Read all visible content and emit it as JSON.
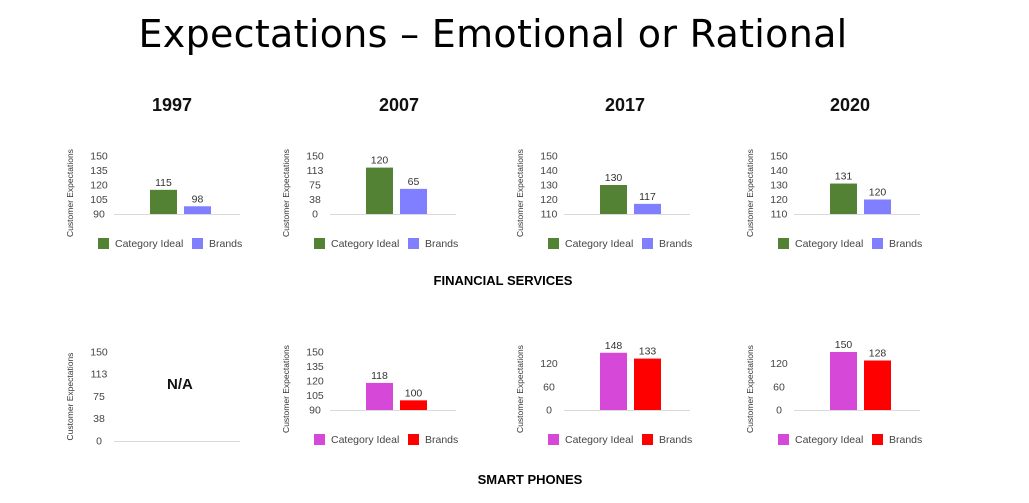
{
  "title": "Expectations – Emotional or Rational",
  "years": [
    "1997",
    "2007",
    "2017",
    "2020"
  ],
  "sections": [
    {
      "label": "FINANCIAL SERVICES"
    },
    {
      "label": "SMART PHONES"
    }
  ],
  "colors": {
    "financial_ideal": "#548235",
    "financial_brands": "#7f7fff",
    "phone_ideal": "#d648d7",
    "phone_brands": "#ff0000"
  },
  "chart_data": [
    {
      "type": "bar",
      "id": "fs-1997",
      "ylabel": "Customer Expectations",
      "yticks": [
        90,
        105,
        120,
        135,
        150
      ],
      "ylim": [
        90,
        150
      ],
      "categories": [
        "Category Ideal",
        "Brands"
      ],
      "values": [
        115,
        98
      ],
      "legend": [
        "Category Ideal",
        "Brands"
      ],
      "na": ""
    },
    {
      "type": "bar",
      "id": "fs-2007",
      "ylabel": "Customer Expectations",
      "yticks": [
        0,
        38,
        75,
        113,
        150
      ],
      "ylim": [
        0,
        150
      ],
      "categories": [
        "Category Ideal",
        "Brands"
      ],
      "values": [
        120,
        65
      ],
      "legend": [
        "Category Ideal",
        "Brands"
      ],
      "na": ""
    },
    {
      "type": "bar",
      "id": "fs-2017",
      "ylabel": "Customer Expectations",
      "yticks": [
        110,
        120,
        130,
        140,
        150
      ],
      "ylim": [
        110,
        150
      ],
      "categories": [
        "Category Ideal",
        "Brands"
      ],
      "values": [
        130,
        117
      ],
      "legend": [
        "Category Ideal",
        "Brands"
      ],
      "na": ""
    },
    {
      "type": "bar",
      "id": "fs-2020",
      "ylabel": "Customer Expectations",
      "yticks": [
        110,
        120,
        130,
        140,
        150
      ],
      "ylim": [
        110,
        150
      ],
      "categories": [
        "Category Ideal",
        "Brands"
      ],
      "values": [
        131,
        120
      ],
      "legend": [
        "Category Ideal",
        "Brands"
      ],
      "na": ""
    },
    {
      "type": "bar",
      "id": "sp-1997",
      "ylabel": "Customer Expectations",
      "yticks": [
        0,
        38,
        75,
        113,
        150
      ],
      "ylim": [
        0,
        150
      ],
      "categories": [],
      "values": [],
      "legend": [],
      "na": "N/A"
    },
    {
      "type": "bar",
      "id": "sp-2007",
      "ylabel": "Customer Expectations",
      "yticks": [
        90,
        105,
        120,
        135,
        150
      ],
      "ylim": [
        90,
        150
      ],
      "categories": [
        "Category Ideal",
        "Brands"
      ],
      "values": [
        118,
        100
      ],
      "legend": [
        "Category Ideal",
        "Brands"
      ],
      "na": ""
    },
    {
      "type": "bar",
      "id": "sp-2017",
      "ylabel": "Customer Expectations",
      "yticks": [
        0,
        60,
        120
      ],
      "ylim": [
        0,
        150
      ],
      "categories": [
        "Category Ideal",
        "Brands"
      ],
      "values": [
        148,
        133
      ],
      "legend": [
        "Category Ideal",
        "Brands"
      ],
      "na": ""
    },
    {
      "type": "bar",
      "id": "sp-2020",
      "ylabel": "Customer Expectations",
      "yticks": [
        0,
        60,
        120
      ],
      "ylim": [
        0,
        150
      ],
      "categories": [
        "Category Ideal",
        "Brands"
      ],
      "values": [
        150,
        128
      ],
      "legend": [
        "Category Ideal",
        "Brands"
      ],
      "na": ""
    }
  ]
}
